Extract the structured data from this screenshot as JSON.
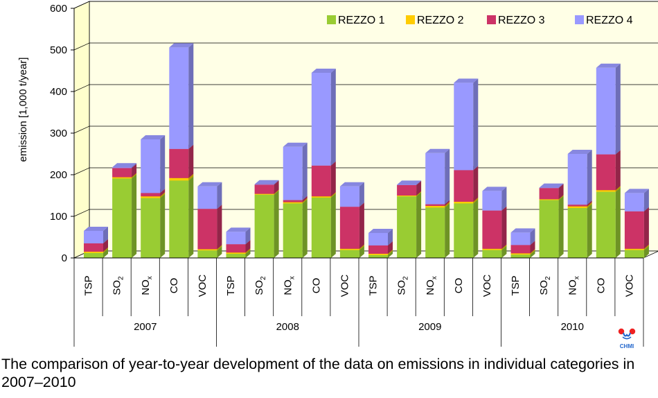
{
  "chart_data": {
    "type": "bar",
    "stacked": true,
    "three_d": true,
    "ylabel": "emission [1,000 t/year]",
    "ylim": [
      0,
      600
    ],
    "yticks": [
      0,
      100,
      200,
      300,
      400,
      500,
      600
    ],
    "grid": true,
    "legend_position": "top-right",
    "years": [
      "2007",
      "2008",
      "2009",
      "2010"
    ],
    "pollutants": [
      {
        "base": "TSP",
        "sub": ""
      },
      {
        "base": "SO",
        "sub": "2"
      },
      {
        "base": "NO",
        "sub": "x"
      },
      {
        "base": "CO",
        "sub": ""
      },
      {
        "base": "VOC",
        "sub": ""
      }
    ],
    "series": [
      {
        "name": "REZZO 1",
        "color": "#99cc33",
        "values": [
          [
            12,
            191,
            144,
            186,
            18
          ],
          [
            10,
            152,
            131,
            145,
            19
          ],
          [
            7,
            148,
            121,
            131,
            19
          ],
          [
            8,
            139,
            120,
            159,
            19
          ]
        ]
      },
      {
        "name": "REZZO 2",
        "color": "#ffcc00",
        "values": [
          [
            3,
            3,
            4,
            6,
            3
          ],
          [
            3,
            2,
            3,
            3,
            3
          ],
          [
            3,
            2,
            4,
            4,
            3
          ],
          [
            3,
            2,
            4,
            4,
            3
          ]
        ]
      },
      {
        "name": "REZZO 3",
        "color": "#cc3366",
        "values": [
          [
            20,
            22,
            8,
            70,
            97
          ],
          [
            20,
            22,
            5,
            74,
            101
          ],
          [
            20,
            25,
            4,
            76,
            92
          ],
          [
            20,
            27,
            4,
            86,
            90
          ]
        ]
      },
      {
        "name": "REZZO 4",
        "color": "#9999ff",
        "values": [
          [
            30,
            2,
            129,
            244,
            54
          ],
          [
            30,
            1,
            128,
            223,
            49
          ],
          [
            30,
            1,
            123,
            210,
            47
          ],
          [
            30,
            1,
            122,
            208,
            44
          ]
        ]
      }
    ]
  },
  "caption": "The comparison of year-to-year development of the data on emissions in individual categories in 2007–2010",
  "logo": {
    "text": "CHMI",
    "colors": [
      "#ee2222",
      "#ee2222",
      "#2266cc"
    ]
  }
}
